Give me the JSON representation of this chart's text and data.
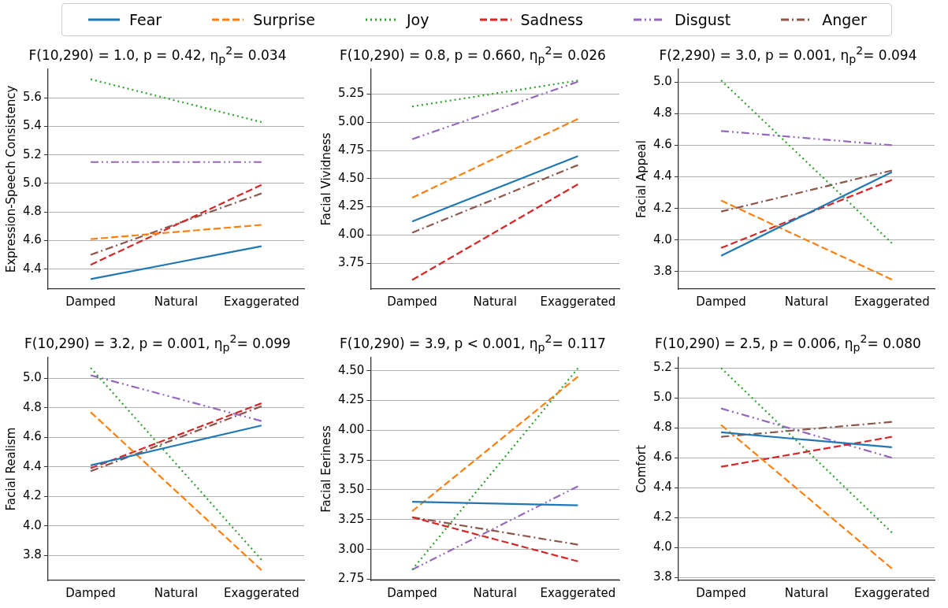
{
  "chart_data": [
    {
      "type": "line",
      "title": "F(10,290) = 1.0, p = 0.42, η$_{p}$$^{2}$= 0.034",
      "ylabel": "Expression-Speech Consistency",
      "categories": [
        "Damped",
        "Natural",
        "Exaggerated"
      ],
      "ylim": [
        4.26,
        5.8
      ],
      "yticks": [
        4.4,
        4.6,
        4.8,
        {
          "value": 5,
          "label": "5.0"
        },
        5.2,
        5.4,
        5.6
      ],
      "grid": "y",
      "legend": "top",
      "marker": "none",
      "series": [
        {
          "name": "Fear",
          "color": "#1f77b4",
          "line_style": "solid",
          "values": [
            4.33,
            4.445,
            4.56
          ]
        },
        {
          "name": "Surprise",
          "color": "#ff7f0e",
          "line_style": "dashed",
          "values": [
            4.61,
            4.66,
            4.71
          ]
        },
        {
          "name": "Joy",
          "color": "#2ca02c",
          "line_style": "dotted",
          "values": [
            5.73,
            5.58,
            5.43
          ]
        },
        {
          "name": "Sadness",
          "color": "#d62728",
          "line_style": "dashed",
          "values": [
            4.43,
            4.71,
            4.99
          ]
        },
        {
          "name": "Disgust",
          "color": "#9467bd",
          "line_style": "dashdotdot",
          "values": [
            5.15,
            5.15,
            5.15
          ]
        },
        {
          "name": "Anger",
          "color": "#8c564b",
          "line_style": "dashdot",
          "values": [
            4.5,
            4.715,
            4.93
          ]
        }
      ]
    },
    {
      "type": "line",
      "title": "F(10,290) = 0.8, p = 0.660, η$_{p}$$^{2}$= 0.026",
      "ylabel": "Facial Vividness",
      "categories": [
        "Damped",
        "Natural",
        "Exaggerated"
      ],
      "ylim": [
        3.52,
        5.47
      ],
      "yticks": [
        3.75,
        {
          "value": 4,
          "label": "4.00"
        },
        4.25,
        {
          "value": 4.5,
          "label": "4.50"
        },
        4.75,
        {
          "value": 5,
          "label": "5.00"
        },
        5.25
      ],
      "grid": "y",
      "marker": "none",
      "series": [
        {
          "color": "#1f77b4",
          "line_style": "solid",
          "values": [
            4.12,
            4.41,
            4.7
          ]
        },
        {
          "color": "#ff7f0e",
          "line_style": "dashed",
          "values": [
            4.33,
            4.68,
            5.03
          ]
        },
        {
          "color": "#2ca02c",
          "line_style": "dotted",
          "values": [
            5.14,
            5.255,
            5.37
          ]
        },
        {
          "color": "#d62728",
          "line_style": "dashed",
          "values": [
            3.6,
            4.025,
            4.45
          ]
        },
        {
          "color": "#9467bd",
          "line_style": "dashdotdot",
          "values": [
            4.85,
            5.105,
            5.36
          ]
        },
        {
          "color": "#8c564b",
          "line_style": "dashdot",
          "values": [
            4.02,
            4.32,
            4.62
          ]
        }
      ]
    },
    {
      "type": "line",
      "title": "F(2,290) = 3.0, p = 0.001, η$_{p}$$^{2}$= 0.094",
      "ylabel": "Facial Appeal",
      "categories": [
        "Damped",
        "Natural",
        "Exaggerated"
      ],
      "ylim": [
        3.69,
        5.08
      ],
      "yticks": [
        3.8,
        {
          "value": 4,
          "label": "4.0"
        },
        4.2,
        4.4,
        4.6,
        4.8,
        {
          "value": 5,
          "label": "5.0"
        }
      ],
      "grid": "y",
      "marker": "none",
      "series": [
        {
          "color": "#1f77b4",
          "line_style": "solid",
          "values": [
            3.9,
            4.165,
            4.43
          ]
        },
        {
          "color": "#ff7f0e",
          "line_style": "dashed",
          "values": [
            4.25,
            4.0,
            3.75
          ]
        },
        {
          "color": "#2ca02c",
          "line_style": "dotted",
          "values": [
            5.01,
            4.495,
            3.98
          ]
        },
        {
          "color": "#d62728",
          "line_style": "dashed",
          "values": [
            3.95,
            4.165,
            4.38
          ]
        },
        {
          "color": "#9467bd",
          "line_style": "dashdotdot",
          "values": [
            4.69,
            4.645,
            4.6
          ]
        },
        {
          "color": "#8c564b",
          "line_style": "dashdot",
          "values": [
            4.18,
            4.31,
            4.44
          ]
        }
      ]
    },
    {
      "type": "line",
      "title": "F(10,290) = 3.2, p = 0.001, η$_{p}$$^{2}$= 0.099",
      "ylabel": "Facial Realism",
      "categories": [
        "Damped",
        "Natural",
        "Exaggerated"
      ],
      "ylim": [
        3.63,
        5.14
      ],
      "yticks": [
        3.8,
        {
          "value": 4,
          "label": "4.0"
        },
        4.2,
        4.4,
        4.6,
        4.8,
        {
          "value": 5,
          "label": "5.0"
        }
      ],
      "grid": "y",
      "marker": "none",
      "series": [
        {
          "color": "#1f77b4",
          "line_style": "solid",
          "values": [
            4.41,
            4.545,
            4.68
          ]
        },
        {
          "color": "#ff7f0e",
          "line_style": "dashed",
          "values": [
            4.77,
            4.235,
            3.7
          ]
        },
        {
          "color": "#2ca02c",
          "line_style": "dotted",
          "values": [
            5.07,
            4.42,
            3.77
          ]
        },
        {
          "color": "#d62728",
          "line_style": "dashed",
          "values": [
            4.39,
            4.61,
            4.83
          ]
        },
        {
          "color": "#9467bd",
          "line_style": "dashdotdot",
          "values": [
            5.02,
            4.865,
            4.71
          ]
        },
        {
          "color": "#8c564b",
          "line_style": "dashdot",
          "values": [
            4.37,
            4.59,
            4.81
          ]
        }
      ]
    },
    {
      "type": "line",
      "title": "F(10,290) = 3.9, p < 0.001, η$_{p}$$^{2}$= 0.117",
      "ylabel": "Facial Eeriness",
      "categories": [
        "Damped",
        "Natural",
        "Exaggerated"
      ],
      "ylim": [
        2.74,
        4.61
      ],
      "yticks": [
        2.75,
        {
          "value": 3,
          "label": "3.00"
        },
        3.25,
        {
          "value": 3.5,
          "label": "3.50"
        },
        3.75,
        {
          "value": 4,
          "label": "4.00"
        },
        4.25,
        {
          "value": 4.5,
          "label": "4.50"
        }
      ],
      "grid": "y",
      "marker": "none",
      "series": [
        {
          "color": "#1f77b4",
          "line_style": "solid",
          "values": [
            3.4,
            3.385,
            3.37
          ]
        },
        {
          "color": "#ff7f0e",
          "line_style": "dashed",
          "values": [
            3.32,
            3.885,
            4.45
          ]
        },
        {
          "color": "#2ca02c",
          "line_style": "dotted",
          "values": [
            2.83,
            3.675,
            4.52
          ]
        },
        {
          "color": "#d62728",
          "line_style": "dashed",
          "values": [
            3.27,
            3.085,
            2.9
          ]
        },
        {
          "color": "#9467bd",
          "line_style": "dashdotdot",
          "values": [
            2.83,
            3.18,
            3.53
          ]
        },
        {
          "color": "#8c564b",
          "line_style": "dashdot",
          "values": [
            3.27,
            3.155,
            3.04
          ]
        }
      ]
    },
    {
      "type": "line",
      "title": "F(10,290) = 2.5, p = 0.006, η$_{p}$$^{2}$= 0.080",
      "ylabel": "Comfort",
      "categories": [
        "Damped",
        "Natural",
        "Exaggerated"
      ],
      "ylim": [
        3.78,
        5.27
      ],
      "yticks": [
        3.8,
        {
          "value": 4,
          "label": "4.0"
        },
        4.2,
        4.4,
        4.6,
        4.8,
        {
          "value": 5,
          "label": "5.0"
        },
        5.2
      ],
      "grid": "y",
      "marker": "none",
      "series": [
        {
          "color": "#1f77b4",
          "line_style": "solid",
          "values": [
            4.77,
            4.72,
            4.67
          ]
        },
        {
          "color": "#ff7f0e",
          "line_style": "dashed",
          "values": [
            4.82,
            4.34,
            3.86
          ]
        },
        {
          "color": "#2ca02c",
          "line_style": "dotted",
          "values": [
            5.2,
            4.65,
            4.1
          ]
        },
        {
          "color": "#d62728",
          "line_style": "dashed",
          "values": [
            4.54,
            4.64,
            4.74
          ]
        },
        {
          "color": "#9467bd",
          "line_style": "dashdotdot",
          "values": [
            4.93,
            4.765,
            4.6
          ]
        },
        {
          "color": "#8c564b",
          "line_style": "dashdot",
          "values": [
            4.74,
            4.79,
            4.84
          ]
        }
      ]
    }
  ]
}
